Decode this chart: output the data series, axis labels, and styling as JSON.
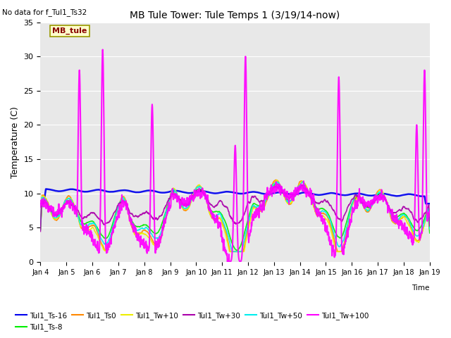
{
  "title": "MB Tule Tower: Tule Temps 1 (3/19/14-now)",
  "subtitle": "No data for f_Tul1_Ts32",
  "ylabel": "Temperature (C)",
  "xlabel": "Time",
  "ylim": [
    0,
    35
  ],
  "xlim": [
    0,
    15
  ],
  "x_tick_labels": [
    "Jan 4",
    "Jan 5",
    "Jan 6",
    "Jan 7",
    "Jan 8",
    "Jan 9",
    "Jan 10",
    "Jan 11",
    "Jan 12",
    "Jan 13",
    "Jan 14",
    "Jan 15",
    "Jan 16",
    "Jan 17",
    "Jan 18",
    "Jan 19"
  ],
  "series": {
    "Tul1_Ts-16": {
      "color": "#0000ee",
      "lw": 1.8
    },
    "Tul1_Ts-8": {
      "color": "#00ee00",
      "lw": 1.2
    },
    "Tul1_Ts0": {
      "color": "#ff8800",
      "lw": 1.2
    },
    "Tul1_Tw+10": {
      "color": "#eeee00",
      "lw": 1.2
    },
    "Tul1_Tw+30": {
      "color": "#aa00aa",
      "lw": 1.2
    },
    "Tul1_Tw+50": {
      "color": "#00eeee",
      "lw": 1.2
    },
    "Tul1_Tw+100": {
      "color": "#ff00ff",
      "lw": 1.5
    }
  },
  "annotation_box": {
    "text": "MB_tule",
    "facecolor": "#ffffcc",
    "edgecolor": "#999900",
    "textcolor": "#880000",
    "fontsize": 8
  },
  "spike_times": [
    1.5,
    2.4,
    4.3,
    7.5,
    7.9,
    11.5,
    14.5,
    14.8
  ],
  "spike_heights": [
    28,
    31,
    23,
    17,
    30,
    27,
    20,
    28
  ],
  "dip_times": [
    2.3,
    4.2,
    7.3,
    7.8,
    11.4,
    14.3
  ],
  "dip_values": [
    2.5,
    1.5,
    1.5,
    2.0,
    0.3,
    4.0
  ]
}
